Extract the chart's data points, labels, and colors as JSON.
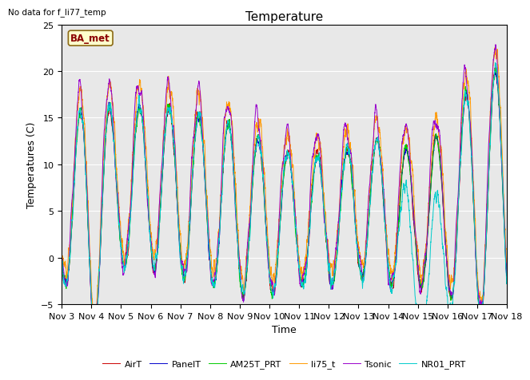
{
  "title": "Temperature",
  "ylabel": "Temperatures (C)",
  "xlabel": "Time",
  "xlim_labels": [
    "Nov 3",
    "Nov 4",
    "Nov 5",
    "Nov 6",
    "Nov 7",
    "Nov 8",
    "Nov 9",
    "Nov 10",
    "Nov 11",
    "Nov 12",
    "Nov 13",
    "Nov 14",
    "Nov 15",
    "Nov 16",
    "Nov 17",
    "Nov 18"
  ],
  "ylim": [
    -5,
    25
  ],
  "yticks": [
    -5,
    0,
    5,
    10,
    15,
    20,
    25
  ],
  "annotation_text": "BA_met",
  "no_data_text": "No data for f_li77_temp",
  "legend": [
    {
      "label": "AirT",
      "color": "#cc0000"
    },
    {
      "label": "PanelT",
      "color": "#0000cc"
    },
    {
      "label": "AM25T_PRT",
      "color": "#00cc00"
    },
    {
      "label": "li75_t",
      "color": "#ff9900"
    },
    {
      "label": "Tsonic",
      "color": "#9900cc"
    },
    {
      "label": "NR01_PRT",
      "color": "#00cccc"
    }
  ],
  "bg_color": "#e8e8e8",
  "fig_bg": "#ffffff",
  "title_fontsize": 11,
  "label_fontsize": 9,
  "tick_fontsize": 8
}
